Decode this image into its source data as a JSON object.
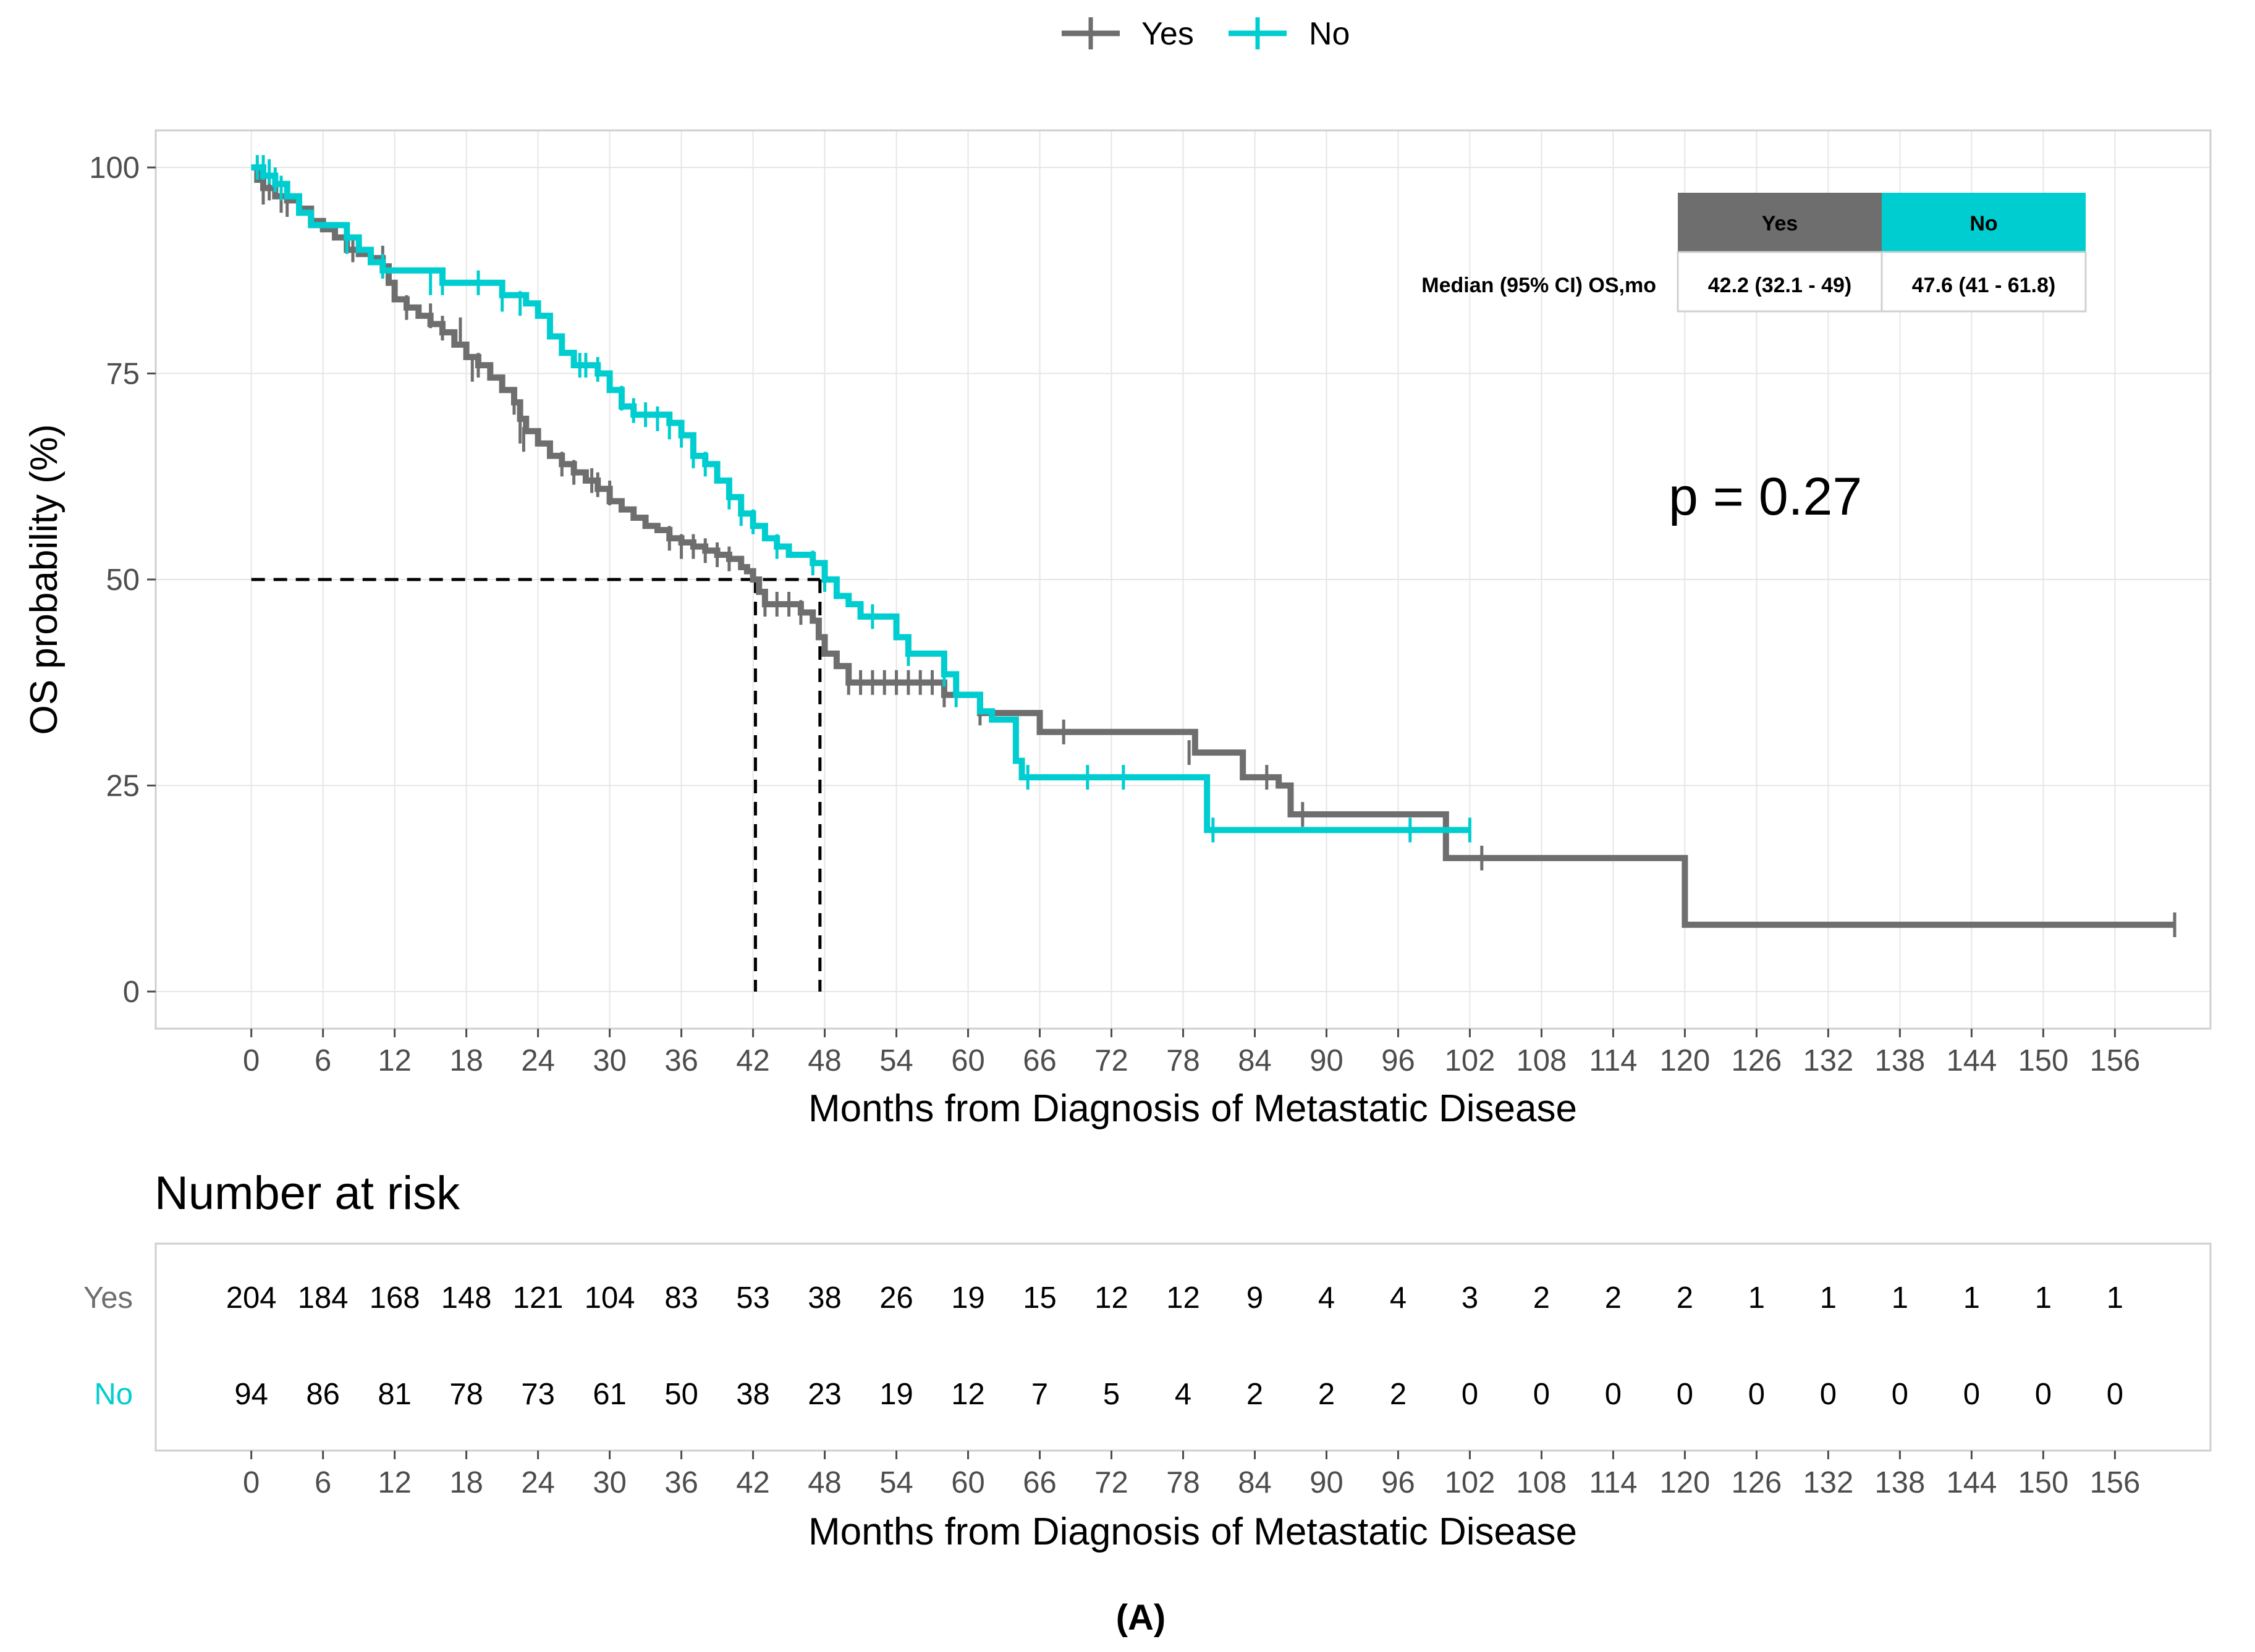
{
  "legend": [
    {
      "label": "Yes",
      "color": "#6e6e6e"
    },
    {
      "label": "No",
      "color": "#00cdd0"
    }
  ],
  "pvalue_label": "p = 0.27",
  "median_table": {
    "row_label": "Median (95% CI) OS,mo",
    "headers": [
      "Yes",
      "No"
    ],
    "values": [
      "42.2 (32.1 - 49)",
      "47.6 (41 - 61.8)"
    ]
  },
  "risk_table": {
    "title": "Number at risk",
    "xlabel": "Months from Diagnosis of Metastatic Disease",
    "times": [
      0,
      6,
      12,
      18,
      24,
      30,
      36,
      42,
      48,
      54,
      60,
      66,
      72,
      78,
      84,
      90,
      96,
      102,
      108,
      114,
      120,
      126,
      132,
      138,
      144,
      150,
      156
    ],
    "rows": [
      {
        "label": "Yes",
        "color": "#6e6e6e",
        "values": [
          204,
          184,
          168,
          148,
          121,
          104,
          83,
          53,
          38,
          26,
          19,
          15,
          12,
          12,
          9,
          4,
          4,
          3,
          2,
          2,
          2,
          1,
          1,
          1,
          1,
          1,
          1
        ]
      },
      {
        "label": "No",
        "color": "#00cdd0",
        "values": [
          94,
          86,
          81,
          78,
          73,
          61,
          50,
          38,
          23,
          19,
          12,
          7,
          5,
          4,
          2,
          2,
          2,
          0,
          0,
          0,
          0,
          0,
          0,
          0,
          0,
          0,
          0
        ]
      }
    ]
  },
  "caption": "(A)",
  "chart_data": {
    "type": "line",
    "subtype": "kaplan-meier step curve",
    "title": "",
    "xlabel": "Months from Diagnosis of Metastatic Disease",
    "ylabel": "OS probability (%)",
    "xlim": [
      -8,
      164
    ],
    "ylim": [
      -4.5,
      104.5
    ],
    "xticks": [
      0,
      6,
      12,
      18,
      24,
      30,
      36,
      42,
      48,
      54,
      60,
      66,
      72,
      78,
      84,
      90,
      96,
      102,
      108,
      114,
      120,
      126,
      132,
      138,
      144,
      150,
      156
    ],
    "yticks": [
      0,
      25,
      50,
      75,
      100
    ],
    "grid": true,
    "legend_position": "top",
    "medians": [
      {
        "series": "Yes",
        "x": 42.2,
        "y": 50
      },
      {
        "series": "No",
        "x": 47.6,
        "y": 50
      }
    ],
    "series": [
      {
        "name": "Yes",
        "color": "#6e6e6e",
        "steps": [
          [
            0,
            100
          ],
          [
            0.5,
            98.5
          ],
          [
            1,
            97.5
          ],
          [
            2,
            96.5
          ],
          [
            3,
            96
          ],
          [
            4,
            95
          ],
          [
            5,
            93.5
          ],
          [
            6,
            92.5
          ],
          [
            7,
            91.5
          ],
          [
            8,
            90
          ],
          [
            9,
            89.5
          ],
          [
            10,
            89
          ],
          [
            11,
            88
          ],
          [
            11.5,
            86
          ],
          [
            12,
            84
          ],
          [
            13,
            83
          ],
          [
            14,
            82
          ],
          [
            15,
            81
          ],
          [
            16,
            80
          ],
          [
            17,
            78.5
          ],
          [
            18,
            77
          ],
          [
            19,
            76
          ],
          [
            20,
            74.5
          ],
          [
            21,
            73
          ],
          [
            22,
            71.5
          ],
          [
            22.5,
            69.5
          ],
          [
            23,
            68
          ],
          [
            24,
            66.5
          ],
          [
            25,
            65
          ],
          [
            26,
            64
          ],
          [
            27,
            63
          ],
          [
            28,
            62
          ],
          [
            29,
            61
          ],
          [
            30,
            59.5
          ],
          [
            31,
            58.5
          ],
          [
            32,
            57.5
          ],
          [
            33,
            56.5
          ],
          [
            34,
            56
          ],
          [
            35,
            55
          ],
          [
            36,
            54.5
          ],
          [
            37,
            54
          ],
          [
            38,
            53.5
          ],
          [
            39,
            53
          ],
          [
            40,
            52.5
          ],
          [
            41,
            51.5
          ],
          [
            41.5,
            51
          ],
          [
            42,
            50
          ],
          [
            42.5,
            48.5
          ],
          [
            43,
            47
          ],
          [
            46,
            46
          ],
          [
            47,
            45
          ],
          [
            47.5,
            43
          ],
          [
            48,
            41
          ],
          [
            49,
            39.5
          ],
          [
            50,
            37.5
          ],
          [
            58,
            36
          ],
          [
            61,
            33.8
          ],
          [
            66,
            31.5
          ],
          [
            79,
            29
          ],
          [
            83,
            26
          ],
          [
            86,
            25
          ],
          [
            87,
            21.5
          ],
          [
            100,
            16.2
          ],
          [
            120,
            8.1
          ],
          [
            161,
            8.1
          ]
        ],
        "censors": [
          [
            1,
            97
          ],
          [
            1.5,
            97.5
          ],
          [
            2.5,
            96
          ],
          [
            3,
            95.5
          ],
          [
            8.5,
            90
          ],
          [
            11,
            89
          ],
          [
            13,
            83
          ],
          [
            15,
            82
          ],
          [
            16,
            80.5
          ],
          [
            17.5,
            80.3
          ],
          [
            18.5,
            75.5
          ],
          [
            19,
            76
          ],
          [
            22,
            71.5
          ],
          [
            22.5,
            68
          ],
          [
            22.8,
            67
          ],
          [
            26,
            64
          ],
          [
            27,
            63
          ],
          [
            28.5,
            62
          ],
          [
            29,
            61.5
          ],
          [
            30,
            60.5
          ],
          [
            35,
            55
          ],
          [
            36,
            54
          ],
          [
            37,
            54
          ],
          [
            38,
            53.5
          ],
          [
            39,
            53
          ],
          [
            40,
            52.5
          ],
          [
            43,
            47
          ],
          [
            44,
            47
          ],
          [
            45,
            47
          ],
          [
            46,
            46
          ],
          [
            50,
            37.5
          ],
          [
            51,
            37.5
          ],
          [
            52,
            37.5
          ],
          [
            53,
            37.5
          ],
          [
            54,
            37.5
          ],
          [
            55,
            37.5
          ],
          [
            56,
            37.5
          ],
          [
            57,
            37.5
          ],
          [
            58,
            36
          ],
          [
            61,
            33.8
          ],
          [
            68,
            31.5
          ],
          [
            78.5,
            29
          ],
          [
            85,
            26
          ],
          [
            88,
            21.5
          ],
          [
            103,
            16.2
          ],
          [
            161,
            8.1
          ]
        ]
      },
      {
        "name": "No",
        "color": "#00cdd0",
        "steps": [
          [
            0,
            100
          ],
          [
            1,
            99
          ],
          [
            2,
            98
          ],
          [
            3,
            96.5
          ],
          [
            4,
            94.5
          ],
          [
            5,
            93
          ],
          [
            8,
            91.5
          ],
          [
            9,
            90
          ],
          [
            10,
            88.5
          ],
          [
            11,
            87.5
          ],
          [
            16,
            86
          ],
          [
            21,
            84.5
          ],
          [
            23,
            83.5
          ],
          [
            24,
            82
          ],
          [
            25,
            79.5
          ],
          [
            26,
            77.5
          ],
          [
            27,
            76
          ],
          [
            29,
            75
          ],
          [
            30,
            73
          ],
          [
            31,
            71
          ],
          [
            32,
            70
          ],
          [
            35,
            69
          ],
          [
            36,
            67.5
          ],
          [
            37,
            65
          ],
          [
            38,
            64
          ],
          [
            39,
            62
          ],
          [
            40,
            60
          ],
          [
            41,
            58
          ],
          [
            42,
            56.5
          ],
          [
            43,
            55
          ],
          [
            44,
            54
          ],
          [
            45,
            53
          ],
          [
            47,
            52
          ],
          [
            48,
            50
          ],
          [
            49,
            48
          ],
          [
            50,
            47
          ],
          [
            51,
            45.5
          ],
          [
            54,
            43
          ],
          [
            55,
            41
          ],
          [
            58,
            38.5
          ],
          [
            59,
            36
          ],
          [
            61,
            34
          ],
          [
            62,
            33
          ],
          [
            64,
            28
          ],
          [
            64.5,
            26
          ],
          [
            80,
            19.6
          ],
          [
            102,
            19.6
          ]
        ],
        "censors": [
          [
            0.5,
            100
          ],
          [
            1,
            100
          ],
          [
            1.5,
            99.5
          ],
          [
            2,
            98.5
          ],
          [
            2.5,
            97.5
          ],
          [
            8,
            91
          ],
          [
            11,
            88
          ],
          [
            15,
            86
          ],
          [
            16,
            86
          ],
          [
            19,
            86
          ],
          [
            21,
            84
          ],
          [
            22.5,
            83.5
          ],
          [
            27.5,
            76
          ],
          [
            28,
            76
          ],
          [
            29,
            75.5
          ],
          [
            31,
            72
          ],
          [
            32,
            70.5
          ],
          [
            33,
            70
          ],
          [
            34,
            69.5
          ],
          [
            35,
            68.5
          ],
          [
            36,
            67.5
          ],
          [
            37,
            65
          ],
          [
            38,
            64
          ],
          [
            40,
            60
          ],
          [
            41,
            58
          ],
          [
            42,
            57
          ],
          [
            44,
            54
          ],
          [
            47,
            52
          ],
          [
            48,
            50
          ],
          [
            52,
            45.5
          ],
          [
            55,
            41
          ],
          [
            58,
            38.5
          ],
          [
            59,
            36
          ],
          [
            65,
            26
          ],
          [
            70,
            26
          ],
          [
            73,
            26
          ],
          [
            80.5,
            19.6
          ],
          [
            97,
            19.6
          ],
          [
            102,
            19.6
          ]
        ]
      }
    ]
  }
}
